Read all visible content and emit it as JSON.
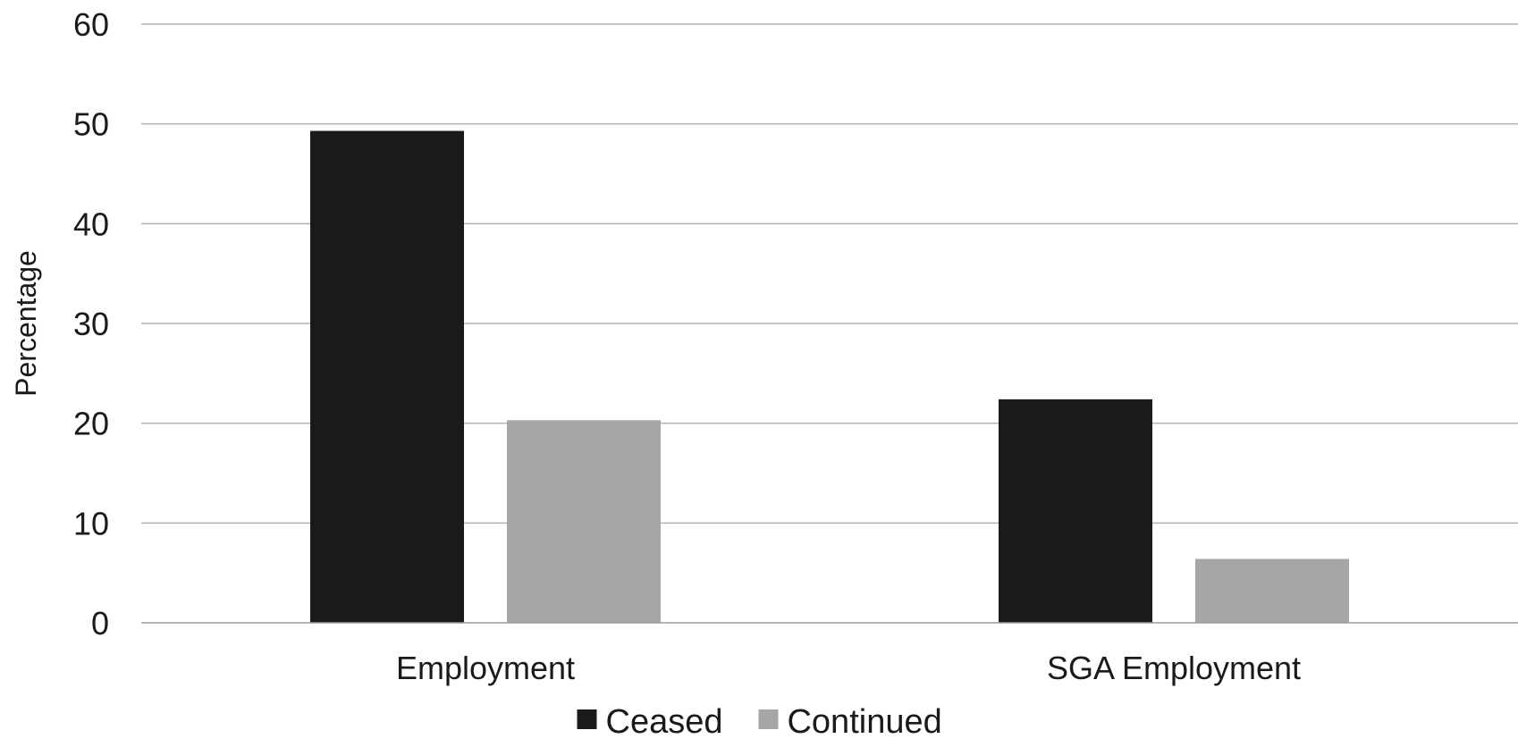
{
  "chart_data": {
    "type": "bar",
    "title": "",
    "xlabel": "",
    "ylabel": "Percentage",
    "ylim": [
      0,
      60
    ],
    "yticks": [
      0,
      10,
      20,
      30,
      40,
      50,
      60
    ],
    "grid": true,
    "legend_position": "bottom",
    "categories": [
      "Employment",
      "SGA Employment"
    ],
    "series": [
      {
        "name": "Ceased",
        "color": "#1a1a1a",
        "values": [
          49.3,
          22.4
        ]
      },
      {
        "name": "Continued",
        "color": "#a6a6a6",
        "values": [
          20.3,
          6.4
        ]
      }
    ]
  }
}
